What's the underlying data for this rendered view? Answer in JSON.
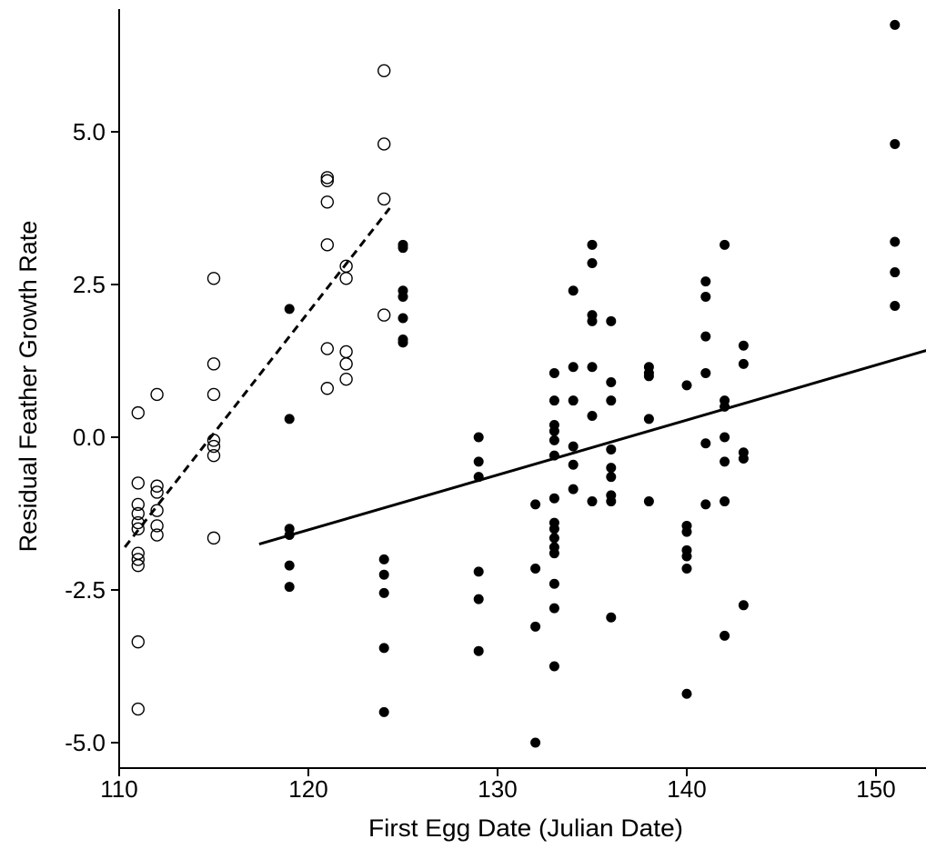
{
  "chart_data": {
    "type": "scatter",
    "xlabel": "First Egg Date (Julian Date)",
    "ylabel": "Residual Feather Growth Rate",
    "xlim": [
      110,
      153
    ],
    "ylim": [
      -5.5,
      7
    ],
    "x_ticks": [
      110,
      120,
      130,
      140,
      150
    ],
    "x_tick_labels": [
      "110",
      "120",
      "130",
      "140",
      "150"
    ],
    "y_ticks": [
      -5.0,
      -2.5,
      0.0,
      2.5,
      5.0
    ],
    "y_tick_labels": [
      "-5.0",
      "-2.5",
      "0.0",
      "2.5",
      "5.0"
    ],
    "grid": false,
    "series": [
      {
        "marker": "open-circle",
        "points": [
          [
            111,
            0.4
          ],
          [
            111,
            -0.75
          ],
          [
            111,
            -1.1
          ],
          [
            111,
            -1.25
          ],
          [
            111,
            -1.4
          ],
          [
            111,
            -1.5
          ],
          [
            111,
            -1.9
          ],
          [
            111,
            -2.0
          ],
          [
            111,
            -2.1
          ],
          [
            111,
            -3.35
          ],
          [
            111,
            -4.45
          ],
          [
            112,
            0.7
          ],
          [
            112,
            -0.8
          ],
          [
            112,
            -0.9
          ],
          [
            112,
            -1.2
          ],
          [
            112,
            -1.45
          ],
          [
            112,
            -1.6
          ],
          [
            115,
            2.6
          ],
          [
            115,
            1.2
          ],
          [
            115,
            0.7
          ],
          [
            115,
            -0.05
          ],
          [
            115,
            -0.15
          ],
          [
            115,
            -0.3
          ],
          [
            115,
            -1.65
          ],
          [
            121,
            4.25
          ],
          [
            121,
            4.2
          ],
          [
            121,
            3.85
          ],
          [
            121,
            3.15
          ],
          [
            121,
            1.45
          ],
          [
            121,
            0.8
          ],
          [
            122,
            2.8
          ],
          [
            122,
            2.6
          ],
          [
            122,
            1.4
          ],
          [
            122,
            1.2
          ],
          [
            122,
            0.95
          ],
          [
            124,
            6.0
          ],
          [
            124,
            4.8
          ],
          [
            124,
            3.9
          ],
          [
            124,
            2.0
          ]
        ]
      },
      {
        "marker": "filled-circle",
        "points": [
          [
            119,
            2.1
          ],
          [
            119,
            0.3
          ],
          [
            119,
            -1.5
          ],
          [
            119,
            -1.6
          ],
          [
            119,
            -2.1
          ],
          [
            119,
            -2.45
          ],
          [
            124,
            -2.0
          ],
          [
            124,
            -2.25
          ],
          [
            124,
            -2.55
          ],
          [
            124,
            -3.45
          ],
          [
            124,
            -4.5
          ],
          [
            125,
            3.1
          ],
          [
            125,
            3.15
          ],
          [
            125,
            2.4
          ],
          [
            125,
            2.3
          ],
          [
            125,
            1.95
          ],
          [
            125,
            1.6
          ],
          [
            125,
            1.55
          ],
          [
            129,
            0.0
          ],
          [
            129,
            -0.4
          ],
          [
            129,
            -0.65
          ],
          [
            129,
            -2.2
          ],
          [
            129,
            -2.65
          ],
          [
            129,
            -3.5
          ],
          [
            132,
            -1.1
          ],
          [
            132,
            -2.15
          ],
          [
            132,
            -3.1
          ],
          [
            132,
            -5.0
          ],
          [
            133,
            1.05
          ],
          [
            133,
            0.6
          ],
          [
            133,
            0.2
          ],
          [
            133,
            0.1
          ],
          [
            133,
            -0.05
          ],
          [
            133,
            -0.3
          ],
          [
            133,
            -1.0
          ],
          [
            133,
            -1.4
          ],
          [
            133,
            -1.5
          ],
          [
            133,
            -1.65
          ],
          [
            133,
            -1.8
          ],
          [
            133,
            -1.9
          ],
          [
            133,
            -2.4
          ],
          [
            133,
            -2.8
          ],
          [
            133,
            -3.75
          ],
          [
            134,
            2.4
          ],
          [
            134,
            1.15
          ],
          [
            134,
            0.6
          ],
          [
            134,
            -0.15
          ],
          [
            134,
            -0.45
          ],
          [
            134,
            -0.85
          ],
          [
            135,
            3.15
          ],
          [
            135,
            2.85
          ],
          [
            135,
            2.0
          ],
          [
            135,
            1.9
          ],
          [
            135,
            1.15
          ],
          [
            135,
            0.35
          ],
          [
            135,
            -1.05
          ],
          [
            136,
            1.9
          ],
          [
            136,
            0.9
          ],
          [
            136,
            0.6
          ],
          [
            136,
            -0.2
          ],
          [
            136,
            -0.5
          ],
          [
            136,
            -0.65
          ],
          [
            136,
            -0.95
          ],
          [
            136,
            -1.05
          ],
          [
            136,
            -2.95
          ],
          [
            138,
            1.15
          ],
          [
            138,
            1.05
          ],
          [
            138,
            1.0
          ],
          [
            138,
            0.3
          ],
          [
            138,
            -1.05
          ],
          [
            140,
            0.85
          ],
          [
            140,
            -1.45
          ],
          [
            140,
            -1.55
          ],
          [
            140,
            -1.85
          ],
          [
            140,
            -1.95
          ],
          [
            140,
            -2.15
          ],
          [
            140,
            -4.2
          ],
          [
            141,
            2.55
          ],
          [
            141,
            2.3
          ],
          [
            141,
            1.65
          ],
          [
            141,
            1.05
          ],
          [
            141,
            -0.1
          ],
          [
            141,
            -1.1
          ],
          [
            142,
            3.15
          ],
          [
            142,
            0.6
          ],
          [
            142,
            0.5
          ],
          [
            142,
            0.0
          ],
          [
            142,
            -0.4
          ],
          [
            142,
            -1.05
          ],
          [
            142,
            -3.25
          ],
          [
            143,
            1.5
          ],
          [
            143,
            1.2
          ],
          [
            143,
            -0.25
          ],
          [
            143,
            -0.35
          ],
          [
            143,
            -2.75
          ],
          [
            151,
            6.75
          ],
          [
            151,
            4.8
          ],
          [
            151,
            3.2
          ],
          [
            151,
            2.7
          ],
          [
            151,
            2.15
          ]
        ]
      }
    ],
    "fit_lines": [
      {
        "style": "dashed",
        "x": [
          110.3,
          124.3
        ],
        "y": [
          -1.8,
          3.75
        ]
      },
      {
        "style": "solid",
        "x": [
          117.4,
          153
        ],
        "y": [
          -1.75,
          1.45
        ]
      }
    ]
  }
}
